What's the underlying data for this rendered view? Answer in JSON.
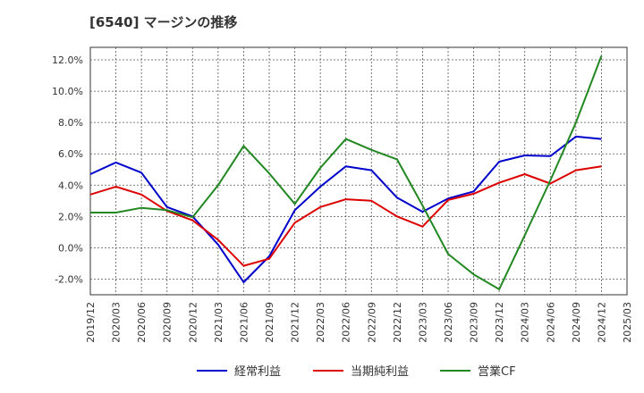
{
  "chart_data": {
    "type": "line",
    "title": "[6540]  マージンの推移",
    "xlabel": "",
    "ylabel": "",
    "ylim": [
      -3.0,
      12.8
    ],
    "y_ticks": [
      -2.0,
      0.0,
      2.0,
      4.0,
      6.0,
      8.0,
      10.0,
      12.0
    ],
    "y_tick_labels": [
      "-2.0%",
      "0.0%",
      "2.0%",
      "4.0%",
      "6.0%",
      "8.0%",
      "10.0%",
      "12.0%"
    ],
    "x_tick_labels": [
      "2019/12",
      "2020/03",
      "2020/06",
      "2020/09",
      "2020/12",
      "2021/03",
      "2021/06",
      "2021/09",
      "2021/12",
      "2022/03",
      "2022/06",
      "2022/09",
      "2022/12",
      "2023/03",
      "2023/06",
      "2023/09",
      "2023/12",
      "2024/03",
      "2024/06",
      "2024/09",
      "2024/12",
      "2025/03"
    ],
    "grid": true,
    "legend_position": "bottom",
    "series": [
      {
        "name": "経常利益",
        "color": "#0000cc",
        "values": [
          4.7,
          5.45,
          4.8,
          2.6,
          2.0,
          0.2,
          -2.2,
          -0.55,
          2.4,
          3.9,
          5.2,
          4.95,
          3.2,
          2.3,
          3.15,
          3.6,
          5.5,
          5.9,
          5.85,
          7.1,
          6.95
        ]
      },
      {
        "name": "当期純利益",
        "color": "#dd0000",
        "values": [
          3.4,
          3.9,
          3.4,
          2.35,
          1.75,
          0.5,
          -1.15,
          -0.7,
          1.6,
          2.6,
          3.1,
          3.0,
          2.0,
          1.35,
          3.05,
          3.45,
          4.15,
          4.7,
          4.1,
          4.95,
          5.2
        ]
      },
      {
        "name": "営業CF",
        "color": "#228822",
        "values": [
          2.25,
          2.25,
          2.55,
          2.4,
          1.95,
          4.0,
          6.5,
          4.75,
          2.8,
          5.1,
          6.95,
          6.25,
          5.65,
          2.7,
          -0.4,
          -1.7,
          -2.65,
          0.8,
          4.3,
          8.0,
          12.25
        ]
      }
    ]
  }
}
